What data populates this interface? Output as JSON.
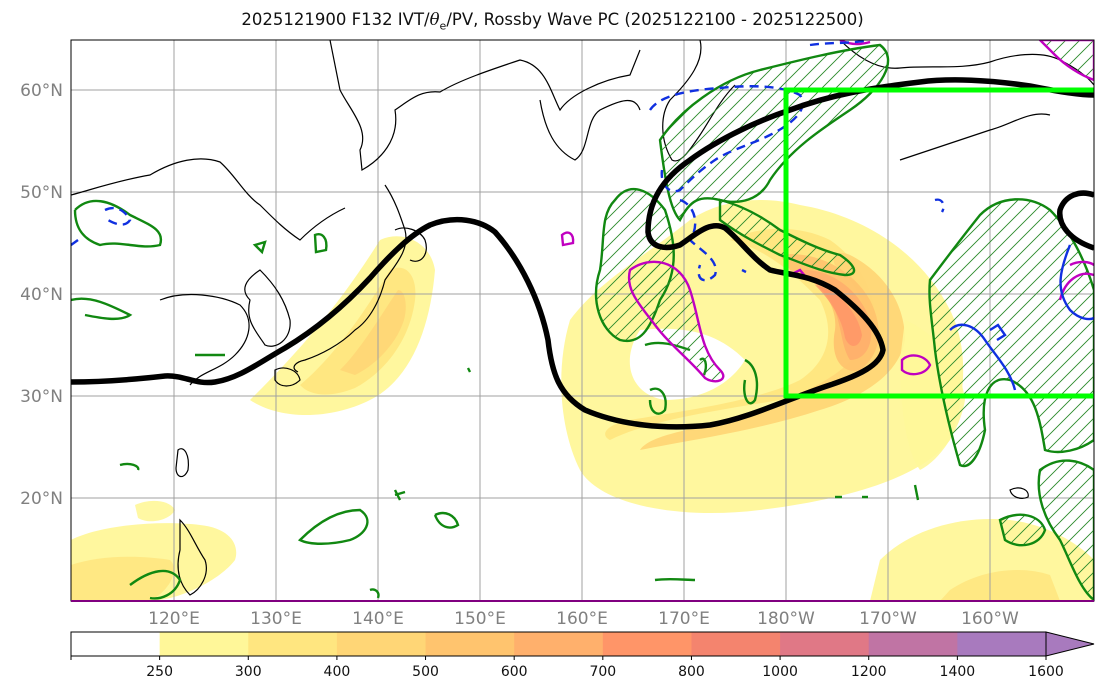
{
  "title": {
    "prefix": "2025121900 F132 IVT/",
    "theta": "θ",
    "theta_sub": "e",
    "suffix": "/PV, Rossby Wave PC (2025122100 - 2025122500)"
  },
  "map": {
    "lon_labels": [
      "120°E",
      "130°E",
      "140°E",
      "150°E",
      "160°E",
      "170°E",
      "180°W",
      "170°W",
      "160°W"
    ],
    "lat_labels": [
      "60°N",
      "50°N",
      "40°N",
      "30°N",
      "20°N"
    ],
    "lon_range": [
      110,
      210
    ],
    "lat_range": [
      10,
      65
    ],
    "region_box": {
      "lon": [
        180,
        210
      ],
      "lat": [
        30,
        60
      ],
      "color": "#00ff00"
    }
  },
  "colorbar": {
    "labels": [
      "250",
      "300",
      "400",
      "500",
      "600",
      "700",
      "800",
      "1000",
      "1200",
      "1400",
      "1600"
    ],
    "colors": [
      "#ffffff",
      "#fff799",
      "#ffe680",
      "#ffd676",
      "#ffc46e",
      "#ffb06c",
      "#ff9568",
      "#f4846e",
      "#e07886",
      "#c074a4",
      "#a87abe"
    ],
    "extend": "max"
  }
}
